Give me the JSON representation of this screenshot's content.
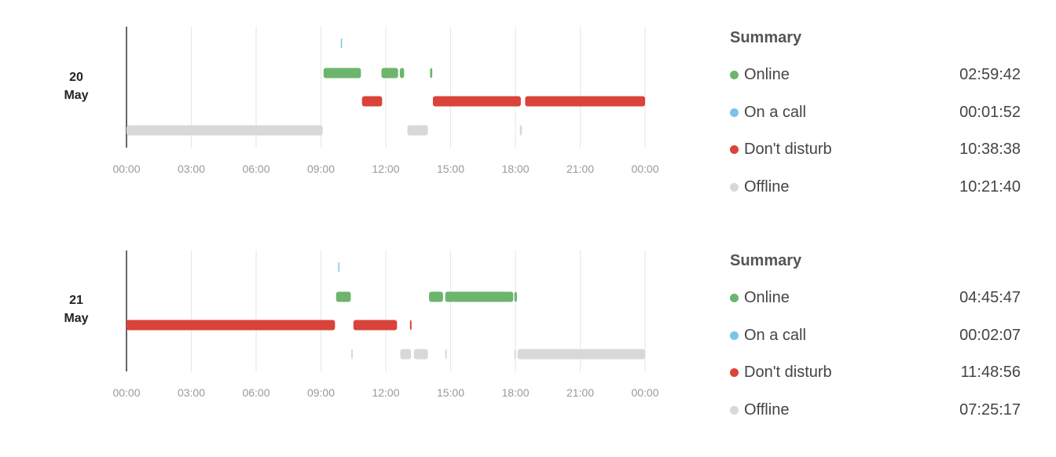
{
  "chart_data": [
    {
      "type": "timeline",
      "date_label": [
        "20",
        "May"
      ],
      "x_ticks": [
        "00:00",
        "03:00",
        "06:00",
        "09:00",
        "12:00",
        "15:00",
        "18:00",
        "21:00",
        "00:00"
      ],
      "xlim_hours": [
        0,
        24
      ],
      "grid": true,
      "rows": [
        "On a call",
        "Online",
        "Don't disturb",
        "Offline"
      ],
      "segments": {
        "On a call": [
          [
            9.92,
            9.95
          ]
        ],
        "Online": [
          [
            9.12,
            10.85
          ],
          [
            11.8,
            12.57
          ],
          [
            12.65,
            12.85
          ],
          [
            14.05,
            14.15
          ]
        ],
        "Don't disturb": [
          [
            10.9,
            11.83
          ],
          [
            14.18,
            18.25
          ],
          [
            18.45,
            24.0
          ]
        ],
        "Offline": [
          [
            0.0,
            9.08
          ],
          [
            13.0,
            13.95
          ],
          [
            18.2,
            18.3
          ]
        ]
      },
      "summary": {
        "title": "Summary",
        "items": [
          {
            "label": "Online",
            "value": "02:59:42",
            "color": "#6db56d"
          },
          {
            "label": "On a call",
            "value": "00:01:52",
            "color": "#79c4e8"
          },
          {
            "label": "Don't disturb",
            "value": "10:38:38",
            "color": "#d9433a"
          },
          {
            "label": "Offline",
            "value": "10:21:40",
            "color": "#d8d8d8"
          }
        ]
      }
    },
    {
      "type": "timeline",
      "date_label": [
        "21",
        "May"
      ],
      "x_ticks": [
        "00:00",
        "03:00",
        "06:00",
        "09:00",
        "12:00",
        "15:00",
        "18:00",
        "21:00",
        "00:00"
      ],
      "xlim_hours": [
        0,
        24
      ],
      "grid": true,
      "rows": [
        "On a call",
        "Online",
        "Don't disturb",
        "Offline"
      ],
      "segments": {
        "On a call": [
          [
            9.8,
            9.83
          ]
        ],
        "Online": [
          [
            9.7,
            10.38
          ],
          [
            14.0,
            14.65
          ],
          [
            14.75,
            17.9
          ],
          [
            17.95,
            18.07
          ]
        ],
        "Don't disturb": [
          [
            0.0,
            9.65
          ],
          [
            10.5,
            12.52
          ],
          [
            13.12,
            13.17
          ]
        ],
        "Offline": [
          [
            10.4,
            10.47
          ],
          [
            12.67,
            13.17
          ],
          [
            13.3,
            13.95
          ],
          [
            14.75,
            14.8
          ],
          [
            17.95,
            18.0
          ],
          [
            18.1,
            24.0
          ]
        ]
      },
      "summary": {
        "title": "Summary",
        "items": [
          {
            "label": "Online",
            "value": "04:45:47",
            "color": "#6db56d"
          },
          {
            "label": "On a call",
            "value": "00:02:07",
            "color": "#79c4e8"
          },
          {
            "label": "Don't disturb",
            "value": "11:48:56",
            "color": "#d9433a"
          },
          {
            "label": "Offline",
            "value": "07:25:17",
            "color": "#d8d8d8"
          }
        ]
      }
    }
  ],
  "colors": {
    "On a call": "#79c4e8",
    "Online": "#6db56d",
    "Don't disturb": "#d9433a",
    "Offline": "#d8d8d8",
    "grid": "#e6e6e6",
    "axis": "#333333"
  }
}
